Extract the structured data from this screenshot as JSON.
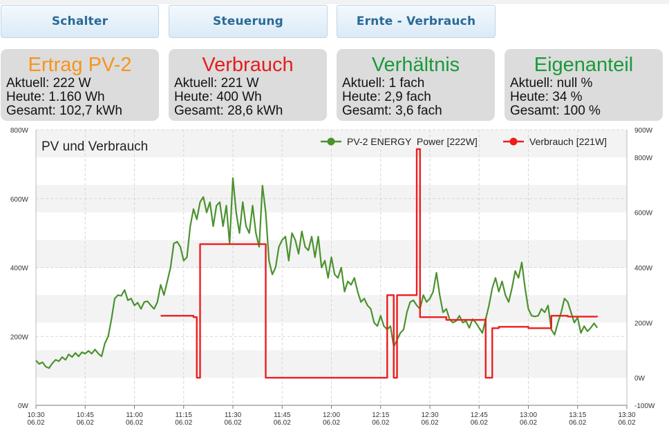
{
  "nav": {
    "buttons": [
      {
        "label": "Schalter"
      },
      {
        "label": "Steuerung"
      },
      {
        "label": "Ernte - Verbrauch"
      }
    ]
  },
  "cards": [
    {
      "title": "Ertrag PV-2",
      "color": "#f7941d",
      "lines": [
        "Aktuell: 222 W",
        "Heute: 1.160 Wh",
        "Gesamt: 102,7 kWh"
      ]
    },
    {
      "title": "Verbrauch",
      "color": "#e41e1e",
      "lines": [
        "Aktuell: 221 W",
        "Heute: 400 Wh",
        "Gesamt: 28,6 kWh"
      ]
    },
    {
      "title": "Verhältnis",
      "color": "#1a9a3a",
      "lines": [
        "Aktuell: 1 fach",
        "Heute: 2,9 fach",
        "Gesamt: 3,6 fach"
      ]
    },
    {
      "title": "Eigenanteil",
      "color": "#1a9a3a",
      "lines": [
        "Aktuell: null %",
        "Heute: 34 %",
        "Gesamt: 100 %"
      ]
    }
  ],
  "chart_data": {
    "type": "line",
    "title": "PV und Verbrauch",
    "legend_position": "top-right",
    "grid": true,
    "x_ticks": [
      "10:30",
      "10:45",
      "11:00",
      "11:15",
      "11:30",
      "11:45",
      "12:00",
      "12:15",
      "12:30",
      "12:45",
      "13:00",
      "13:15",
      "13:30"
    ],
    "x_tick_date": "06.02",
    "x_range": [
      "10:30",
      "13:30"
    ],
    "y_left": {
      "ticks": [
        "0W",
        "200W",
        "400W",
        "600W",
        "800W"
      ],
      "range": [
        0,
        800
      ]
    },
    "y_right": {
      "ticks": [
        "-100W",
        "0W",
        "200W",
        "400W",
        "600W",
        "800W",
        "900W"
      ],
      "range": [
        -100,
        900
      ]
    },
    "series": [
      {
        "name": "PV-2 ENERGY  Power [222W]",
        "color": "#4a922e",
        "axis": "left",
        "style": "line",
        "points": [
          [
            "10:30",
            130
          ],
          [
            "10:31",
            120
          ],
          [
            "10:32",
            125
          ],
          [
            "10:33",
            112
          ],
          [
            "10:34",
            108
          ],
          [
            "10:35",
            122
          ],
          [
            "10:36",
            132
          ],
          [
            "10:37",
            128
          ],
          [
            "10:38",
            140
          ],
          [
            "10:39",
            132
          ],
          [
            "10:40",
            148
          ],
          [
            "10:41",
            140
          ],
          [
            "10:42",
            152
          ],
          [
            "10:43",
            142
          ],
          [
            "10:44",
            154
          ],
          [
            "10:45",
            150
          ],
          [
            "10:46",
            158
          ],
          [
            "10:47",
            150
          ],
          [
            "10:48",
            162
          ],
          [
            "10:49",
            150
          ],
          [
            "10:50",
            142
          ],
          [
            "10:51",
            180
          ],
          [
            "10:52",
            200
          ],
          [
            "10:53",
            250
          ],
          [
            "10:54",
            310
          ],
          [
            "10:55",
            320
          ],
          [
            "10:56",
            318
          ],
          [
            "10:57",
            335
          ],
          [
            "10:58",
            305
          ],
          [
            "10:59",
            310
          ],
          [
            "11:00",
            290
          ],
          [
            "11:01",
            298
          ],
          [
            "11:02",
            280
          ],
          [
            "11:03",
            300
          ],
          [
            "11:04",
            302
          ],
          [
            "11:05",
            290
          ],
          [
            "11:06",
            280
          ],
          [
            "11:07",
            300
          ],
          [
            "11:08",
            350
          ],
          [
            "11:09",
            320
          ],
          [
            "11:10",
            360
          ],
          [
            "11:11",
            400
          ],
          [
            "11:12",
            470
          ],
          [
            "11:13",
            475
          ],
          [
            "11:14",
            460
          ],
          [
            "11:15",
            420
          ],
          [
            "11:16",
            430
          ],
          [
            "11:17",
            520
          ],
          [
            "11:18",
            570
          ],
          [
            "11:19",
            540
          ],
          [
            "11:20",
            590
          ],
          [
            "11:21",
            605
          ],
          [
            "11:22",
            560
          ],
          [
            "11:23",
            590
          ],
          [
            "11:24",
            520
          ],
          [
            "11:25",
            580
          ],
          [
            "11:26",
            590
          ],
          [
            "11:27",
            520
          ],
          [
            "11:28",
            580
          ],
          [
            "11:29",
            470
          ],
          [
            "11:30",
            660
          ],
          [
            "11:31",
            560
          ],
          [
            "11:32",
            500
          ],
          [
            "11:33",
            590
          ],
          [
            "11:34",
            520
          ],
          [
            "11:35",
            500
          ],
          [
            "11:36",
            580
          ],
          [
            "11:37",
            500
          ],
          [
            "11:38",
            460
          ],
          [
            "11:39",
            638
          ],
          [
            "11:40",
            560
          ],
          [
            "11:41",
            420
          ],
          [
            "11:42",
            380
          ],
          [
            "11:43",
            400
          ],
          [
            "11:44",
            460
          ],
          [
            "11:45",
            480
          ],
          [
            "11:46",
            490
          ],
          [
            "11:47",
            420
          ],
          [
            "11:48",
            500
          ],
          [
            "11:49",
            480
          ],
          [
            "11:50",
            440
          ],
          [
            "11:51",
            505
          ],
          [
            "11:52",
            460
          ],
          [
            "11:53",
            450
          ],
          [
            "11:54",
            490
          ],
          [
            "11:55",
            430
          ],
          [
            "11:56",
            490
          ],
          [
            "11:57",
            400
          ],
          [
            "11:58",
            420
          ],
          [
            "11:59",
            370
          ],
          [
            "12:00",
            430
          ],
          [
            "12:01",
            380
          ],
          [
            "12:02",
            370
          ],
          [
            "12:03",
            400
          ],
          [
            "12:04",
            330
          ],
          [
            "12:05",
            360
          ],
          [
            "12:06",
            350
          ],
          [
            "12:07",
            370
          ],
          [
            "12:08",
            330
          ],
          [
            "12:09",
            300
          ],
          [
            "12:10",
            310
          ],
          [
            "12:11",
            290
          ],
          [
            "12:12",
            280
          ],
          [
            "12:13",
            240
          ],
          [
            "12:14",
            230
          ],
          [
            "12:15",
            260
          ],
          [
            "12:16",
            230
          ],
          [
            "12:17",
            220
          ],
          [
            "12:18",
            230
          ],
          [
            "12:19",
            170
          ],
          [
            "12:20",
            190
          ],
          [
            "12:21",
            210
          ],
          [
            "12:22",
            220
          ],
          [
            "12:23",
            270
          ],
          [
            "12:24",
            300
          ],
          [
            "12:25",
            305
          ],
          [
            "12:26",
            290
          ],
          [
            "12:27",
            280
          ],
          [
            "12:28",
            320
          ],
          [
            "12:29",
            300
          ],
          [
            "12:30",
            310
          ],
          [
            "12:31",
            330
          ],
          [
            "12:32",
            385
          ],
          [
            "12:33",
            320
          ],
          [
            "12:34",
            270
          ],
          [
            "12:35",
            280
          ],
          [
            "12:36",
            250
          ],
          [
            "12:37",
            240
          ],
          [
            "12:38",
            245
          ],
          [
            "12:39",
            260
          ],
          [
            "12:40",
            240
          ],
          [
            "12:41",
            245
          ],
          [
            "12:42",
            225
          ],
          [
            "12:43",
            250
          ],
          [
            "12:44",
            240
          ],
          [
            "12:45",
            225
          ],
          [
            "12:46",
            210
          ],
          [
            "12:47",
            250
          ],
          [
            "12:48",
            290
          ],
          [
            "12:49",
            340
          ],
          [
            "12:50",
            370
          ],
          [
            "12:51",
            330
          ],
          [
            "12:52",
            360
          ],
          [
            "12:53",
            320
          ],
          [
            "12:54",
            300
          ],
          [
            "12:55",
            340
          ],
          [
            "12:56",
            390
          ],
          [
            "12:57",
            370
          ],
          [
            "12:58",
            415
          ],
          [
            "12:59",
            340
          ],
          [
            "13:00",
            280
          ],
          [
            "13:01",
            260
          ],
          [
            "13:02",
            258
          ],
          [
            "13:03",
            260
          ],
          [
            "13:04",
            280
          ],
          [
            "13:05",
            270
          ],
          [
            "13:06",
            290
          ],
          [
            "13:07",
            220
          ],
          [
            "13:08",
            205
          ],
          [
            "13:09",
            240
          ],
          [
            "13:10",
            270
          ],
          [
            "13:11",
            310
          ],
          [
            "13:12",
            300
          ],
          [
            "13:13",
            270
          ],
          [
            "13:14",
            240
          ],
          [
            "13:15",
            255
          ],
          [
            "13:16",
            210
          ],
          [
            "13:17",
            230
          ],
          [
            "13:18",
            215
          ],
          [
            "13:19",
            225
          ],
          [
            "13:20",
            238
          ],
          [
            "13:21",
            225
          ]
        ]
      },
      {
        "name": "Verbrauch [221W]",
        "color": "#ee1c1c",
        "axis": "right",
        "style": "step",
        "points": [
          [
            "11:08",
            225
          ],
          [
            "11:18",
            220
          ],
          [
            "11:19",
            0
          ],
          [
            "11:20",
            485
          ],
          [
            "11:31",
            485
          ],
          [
            "11:39",
            485
          ],
          [
            "11:40",
            0
          ],
          [
            "12:06",
            0
          ],
          [
            "12:17",
            0
          ],
          [
            "12:17",
            300
          ],
          [
            "12:19",
            300
          ],
          [
            "12:19",
            0
          ],
          [
            "12:20",
            0
          ],
          [
            "12:20",
            300
          ],
          [
            "12:26",
            300
          ],
          [
            "12:26",
            830
          ],
          [
            "12:27",
            830
          ],
          [
            "12:27",
            220
          ],
          [
            "12:33",
            220
          ],
          [
            "12:35",
            210
          ],
          [
            "12:47",
            215
          ],
          [
            "12:47",
            0
          ],
          [
            "12:49",
            0
          ],
          [
            "12:49",
            180
          ],
          [
            "12:51",
            185
          ],
          [
            "13:00",
            180
          ],
          [
            "13:07",
            180
          ],
          [
            "13:07",
            225
          ],
          [
            "13:12",
            222
          ],
          [
            "13:21",
            221
          ]
        ]
      }
    ]
  }
}
